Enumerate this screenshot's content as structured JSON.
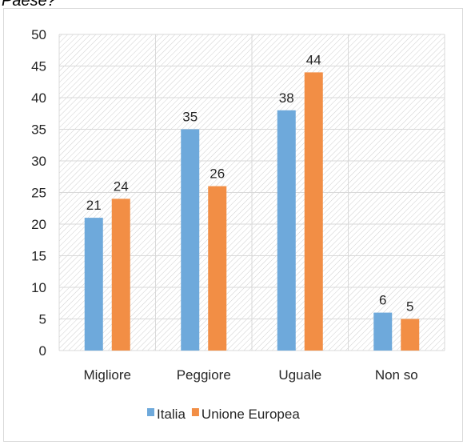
{
  "caption": "Paese?",
  "chart_data": {
    "type": "bar",
    "title": "",
    "xlabel": "",
    "ylabel": "",
    "categories": [
      "Migliore",
      "Peggiore",
      "Uguale",
      "Non so"
    ],
    "series": [
      {
        "name": "Italia",
        "values": [
          21,
          35,
          38,
          6
        ],
        "color": "#6ea9db"
      },
      {
        "name": "Unione Europea",
        "values": [
          24,
          26,
          44,
          5
        ],
        "color": "#f28e45"
      }
    ],
    "ylim": [
      0,
      50
    ],
    "yticks": [
      0,
      5,
      10,
      15,
      20,
      25,
      30,
      35,
      40,
      45,
      50
    ],
    "grid": true,
    "plot_background": "hatched",
    "legend_position": "bottom"
  }
}
